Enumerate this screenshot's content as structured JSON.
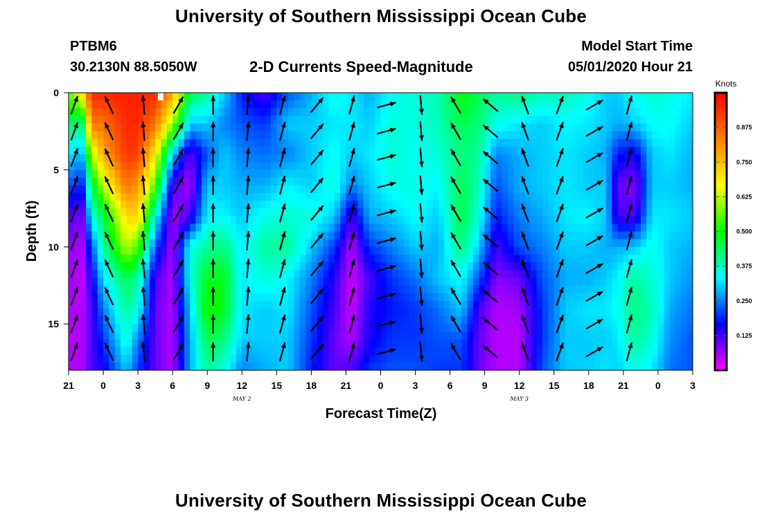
{
  "header": {
    "main_title": "University of Southern Mississippi Ocean Cube",
    "footer_title": "University of Southern Mississippi Ocean Cube",
    "station_id": "PTBM6",
    "station_coords": "30.2130N 88.5050W",
    "plot_title": "2-D Currents Speed-Magnitude",
    "model_label": "Model Start Time",
    "model_time": "05/01/2020 Hour 21"
  },
  "chart_data": {
    "type": "heatmap",
    "title": "2-D Currents Speed-Magnitude",
    "xlabel": "Forecast Time(Z)",
    "ylabel": "Depth (ft)",
    "x_tick_labels": [
      "21",
      "0",
      "3",
      "6",
      "9",
      "12",
      "15",
      "18",
      "21",
      "0",
      "3",
      "6",
      "9",
      "12",
      "15",
      "18",
      "21",
      "0",
      "3"
    ],
    "x_hours": [
      0,
      3,
      6,
      9,
      12,
      15,
      18,
      21,
      24,
      27,
      30,
      33,
      36,
      39,
      42,
      45,
      48,
      51,
      54
    ],
    "date_labels": [
      {
        "text": "MAY 2",
        "hour": 15
      },
      {
        "text": "MAY 3",
        "hour": 39
      }
    ],
    "y_ticks": [
      0,
      5,
      10,
      15
    ],
    "ylim": [
      18,
      0
    ],
    "xlim": [
      0,
      54
    ],
    "colorbar": {
      "label": "Knots",
      "ticks": [
        "0.125",
        "0.250",
        "0.375",
        "0.500",
        "0.625",
        "0.750",
        "0.875"
      ],
      "range": [
        0,
        1
      ]
    },
    "colormap": [
      "#ff00ff",
      "#8000ff",
      "#0000ff",
      "#0080ff",
      "#00ffff",
      "#00ff80",
      "#00ff00",
      "#80ff00",
      "#ffff00",
      "#ffc000",
      "#ff8000",
      "#ff4000",
      "#ff0000"
    ],
    "speed_keyframes": [
      {
        "hour": 0,
        "profile": [
          0.55,
          0.45,
          0.32,
          0.22,
          0.12,
          0.08,
          0.06,
          0.05,
          0.05,
          0.05
        ]
      },
      {
        "hour": 1.2,
        "profile": [
          0.72,
          0.4,
          0.28,
          0.18,
          0.08,
          0.05,
          0.04,
          0.05,
          0.05,
          0.05
        ]
      },
      {
        "hour": 2,
        "profile": [
          0.95,
          0.85,
          0.62,
          0.45,
          0.35,
          0.22,
          0.15,
          0.12,
          0.12,
          0.12
        ]
      },
      {
        "hour": 3,
        "profile": [
          0.95,
          0.85,
          0.78,
          0.62,
          0.45,
          0.4,
          0.32,
          0.25,
          0.2,
          0.15
        ]
      },
      {
        "hour": 5,
        "profile": [
          0.96,
          0.95,
          0.93,
          0.85,
          0.72,
          0.62,
          0.45,
          0.4,
          0.36,
          0.3
        ]
      },
      {
        "hour": 6,
        "profile": [
          0.96,
          0.95,
          0.92,
          0.8,
          0.72,
          0.55,
          0.4,
          0.35,
          0.25,
          0.2
        ]
      },
      {
        "hour": 7.5,
        "profile": [
          0.95,
          0.85,
          0.68,
          0.55,
          0.35,
          0.22,
          0.12,
          0.1,
          0.1,
          0.1
        ]
      },
      {
        "hour": 9,
        "profile": [
          0.78,
          0.6,
          0.3,
          0.12,
          0.06,
          0.05,
          0.05,
          0.05,
          0.05,
          0.05
        ]
      },
      {
        "hour": 10.5,
        "profile": [
          0.45,
          0.3,
          0.1,
          0.05,
          0.12,
          0.35,
          0.35,
          0.3,
          0.28,
          0.28
        ]
      },
      {
        "hour": 12,
        "profile": [
          0.4,
          0.3,
          0.22,
          0.3,
          0.33,
          0.4,
          0.48,
          0.52,
          0.45,
          0.4
        ]
      },
      {
        "hour": 13.5,
        "profile": [
          0.3,
          0.25,
          0.3,
          0.3,
          0.33,
          0.42,
          0.48,
          0.48,
          0.42,
          0.35
        ]
      },
      {
        "hour": 15,
        "profile": [
          0.18,
          0.22,
          0.25,
          0.28,
          0.3,
          0.32,
          0.32,
          0.32,
          0.3,
          0.25
        ]
      },
      {
        "hour": 17,
        "profile": [
          0.12,
          0.2,
          0.24,
          0.28,
          0.35,
          0.4,
          0.36,
          0.3,
          0.3,
          0.28
        ]
      },
      {
        "hour": 19,
        "profile": [
          0.22,
          0.3,
          0.25,
          0.33,
          0.36,
          0.4,
          0.33,
          0.32,
          0.3,
          0.3
        ]
      },
      {
        "hour": 21,
        "profile": [
          0.28,
          0.3,
          0.3,
          0.3,
          0.36,
          0.3,
          0.25,
          0.22,
          0.2,
          0.18
        ]
      },
      {
        "hour": 23,
        "profile": [
          0.35,
          0.32,
          0.34,
          0.36,
          0.3,
          0.2,
          0.14,
          0.12,
          0.1,
          0.1
        ]
      },
      {
        "hour": 24.5,
        "profile": [
          0.32,
          0.32,
          0.3,
          0.25,
          0.12,
          0.05,
          0.03,
          0.03,
          0.05,
          0.12
        ]
      },
      {
        "hour": 26,
        "profile": [
          0.28,
          0.3,
          0.32,
          0.3,
          0.28,
          0.2,
          0.12,
          0.15,
          0.15,
          0.2
        ]
      },
      {
        "hour": 28,
        "profile": [
          0.34,
          0.36,
          0.36,
          0.35,
          0.3,
          0.25,
          0.2,
          0.18,
          0.2,
          0.22
        ]
      },
      {
        "hour": 30,
        "profile": [
          0.36,
          0.35,
          0.34,
          0.35,
          0.34,
          0.3,
          0.24,
          0.2,
          0.2,
          0.22
        ]
      },
      {
        "hour": 32,
        "profile": [
          0.38,
          0.38,
          0.36,
          0.33,
          0.3,
          0.28,
          0.3,
          0.24,
          0.22,
          0.2
        ]
      },
      {
        "hour": 34,
        "profile": [
          0.5,
          0.45,
          0.42,
          0.45,
          0.46,
          0.42,
          0.34,
          0.3,
          0.22,
          0.2
        ]
      },
      {
        "hour": 35.5,
        "profile": [
          0.45,
          0.42,
          0.4,
          0.38,
          0.35,
          0.3,
          0.22,
          0.12,
          0.1,
          0.1
        ]
      },
      {
        "hour": 37,
        "profile": [
          0.4,
          0.35,
          0.25,
          0.22,
          0.18,
          0.12,
          0.08,
          0.05,
          0.05,
          0.05
        ]
      },
      {
        "hour": 39,
        "profile": [
          0.42,
          0.32,
          0.28,
          0.28,
          0.25,
          0.22,
          0.1,
          0.06,
          0.05,
          0.05
        ]
      },
      {
        "hour": 41,
        "profile": [
          0.38,
          0.3,
          0.3,
          0.3,
          0.28,
          0.25,
          0.22,
          0.2,
          0.2,
          0.22
        ]
      },
      {
        "hour": 43,
        "profile": [
          0.38,
          0.33,
          0.32,
          0.32,
          0.32,
          0.3,
          0.28,
          0.3,
          0.3,
          0.3
        ]
      },
      {
        "hour": 45,
        "profile": [
          0.35,
          0.32,
          0.3,
          0.3,
          0.33,
          0.3,
          0.28,
          0.32,
          0.3,
          0.3
        ]
      },
      {
        "hour": 46.5,
        "profile": [
          0.3,
          0.3,
          0.28,
          0.3,
          0.3,
          0.28,
          0.3,
          0.32,
          0.3,
          0.32
        ]
      },
      {
        "hour": 47.5,
        "profile": [
          0.3,
          0.28,
          0.18,
          0.1,
          0.12,
          0.28,
          0.33,
          0.34,
          0.32,
          0.3
        ]
      },
      {
        "hour": 49,
        "profile": [
          0.35,
          0.3,
          0.15,
          0.08,
          0.12,
          0.3,
          0.4,
          0.42,
          0.4,
          0.35
        ]
      },
      {
        "hour": 50.5,
        "profile": [
          0.36,
          0.34,
          0.3,
          0.3,
          0.32,
          0.35,
          0.36,
          0.38,
          0.36,
          0.32
        ]
      },
      {
        "hour": 52,
        "profile": [
          0.35,
          0.34,
          0.32,
          0.3,
          0.32,
          0.3,
          0.3,
          0.28,
          0.26,
          0.24
        ]
      },
      {
        "hour": 54,
        "profile": [
          0.32,
          0.3,
          0.28,
          0.28,
          0.3,
          0.28,
          0.26,
          0.24,
          0.22,
          0.22
        ]
      }
    ],
    "vector_depths": [
      0.8,
      2.5,
      4.2,
      6.0,
      7.8,
      9.6,
      11.4,
      13.2,
      15.0,
      16.8
    ],
    "vector_times": [
      {
        "hour": 0.5,
        "direction_deg": 20
      },
      {
        "hour": 3.5,
        "direction_deg": -25
      },
      {
        "hour": 6.5,
        "direction_deg": -5
      },
      {
        "hour": 9.5,
        "direction_deg": 30
      },
      {
        "hour": 12.5,
        "direction_deg": 0
      },
      {
        "hour": 15.5,
        "direction_deg": 5
      },
      {
        "hour": 18.5,
        "direction_deg": 15
      },
      {
        "hour": 21.5,
        "direction_deg": 40
      },
      {
        "hour": 24.5,
        "direction_deg": 15
      },
      {
        "hour": 27.5,
        "direction_deg": 75
      },
      {
        "hour": 30.5,
        "direction_deg": 175
      },
      {
        "hour": 33.5,
        "direction_deg": -30
      },
      {
        "hour": 36.5,
        "direction_deg": -50
      },
      {
        "hour": 39.5,
        "direction_deg": -20
      },
      {
        "hour": 42.5,
        "direction_deg": 20
      },
      {
        "hour": 45.5,
        "direction_deg": 60
      },
      {
        "hour": 48.5,
        "direction_deg": 15
      }
    ]
  }
}
